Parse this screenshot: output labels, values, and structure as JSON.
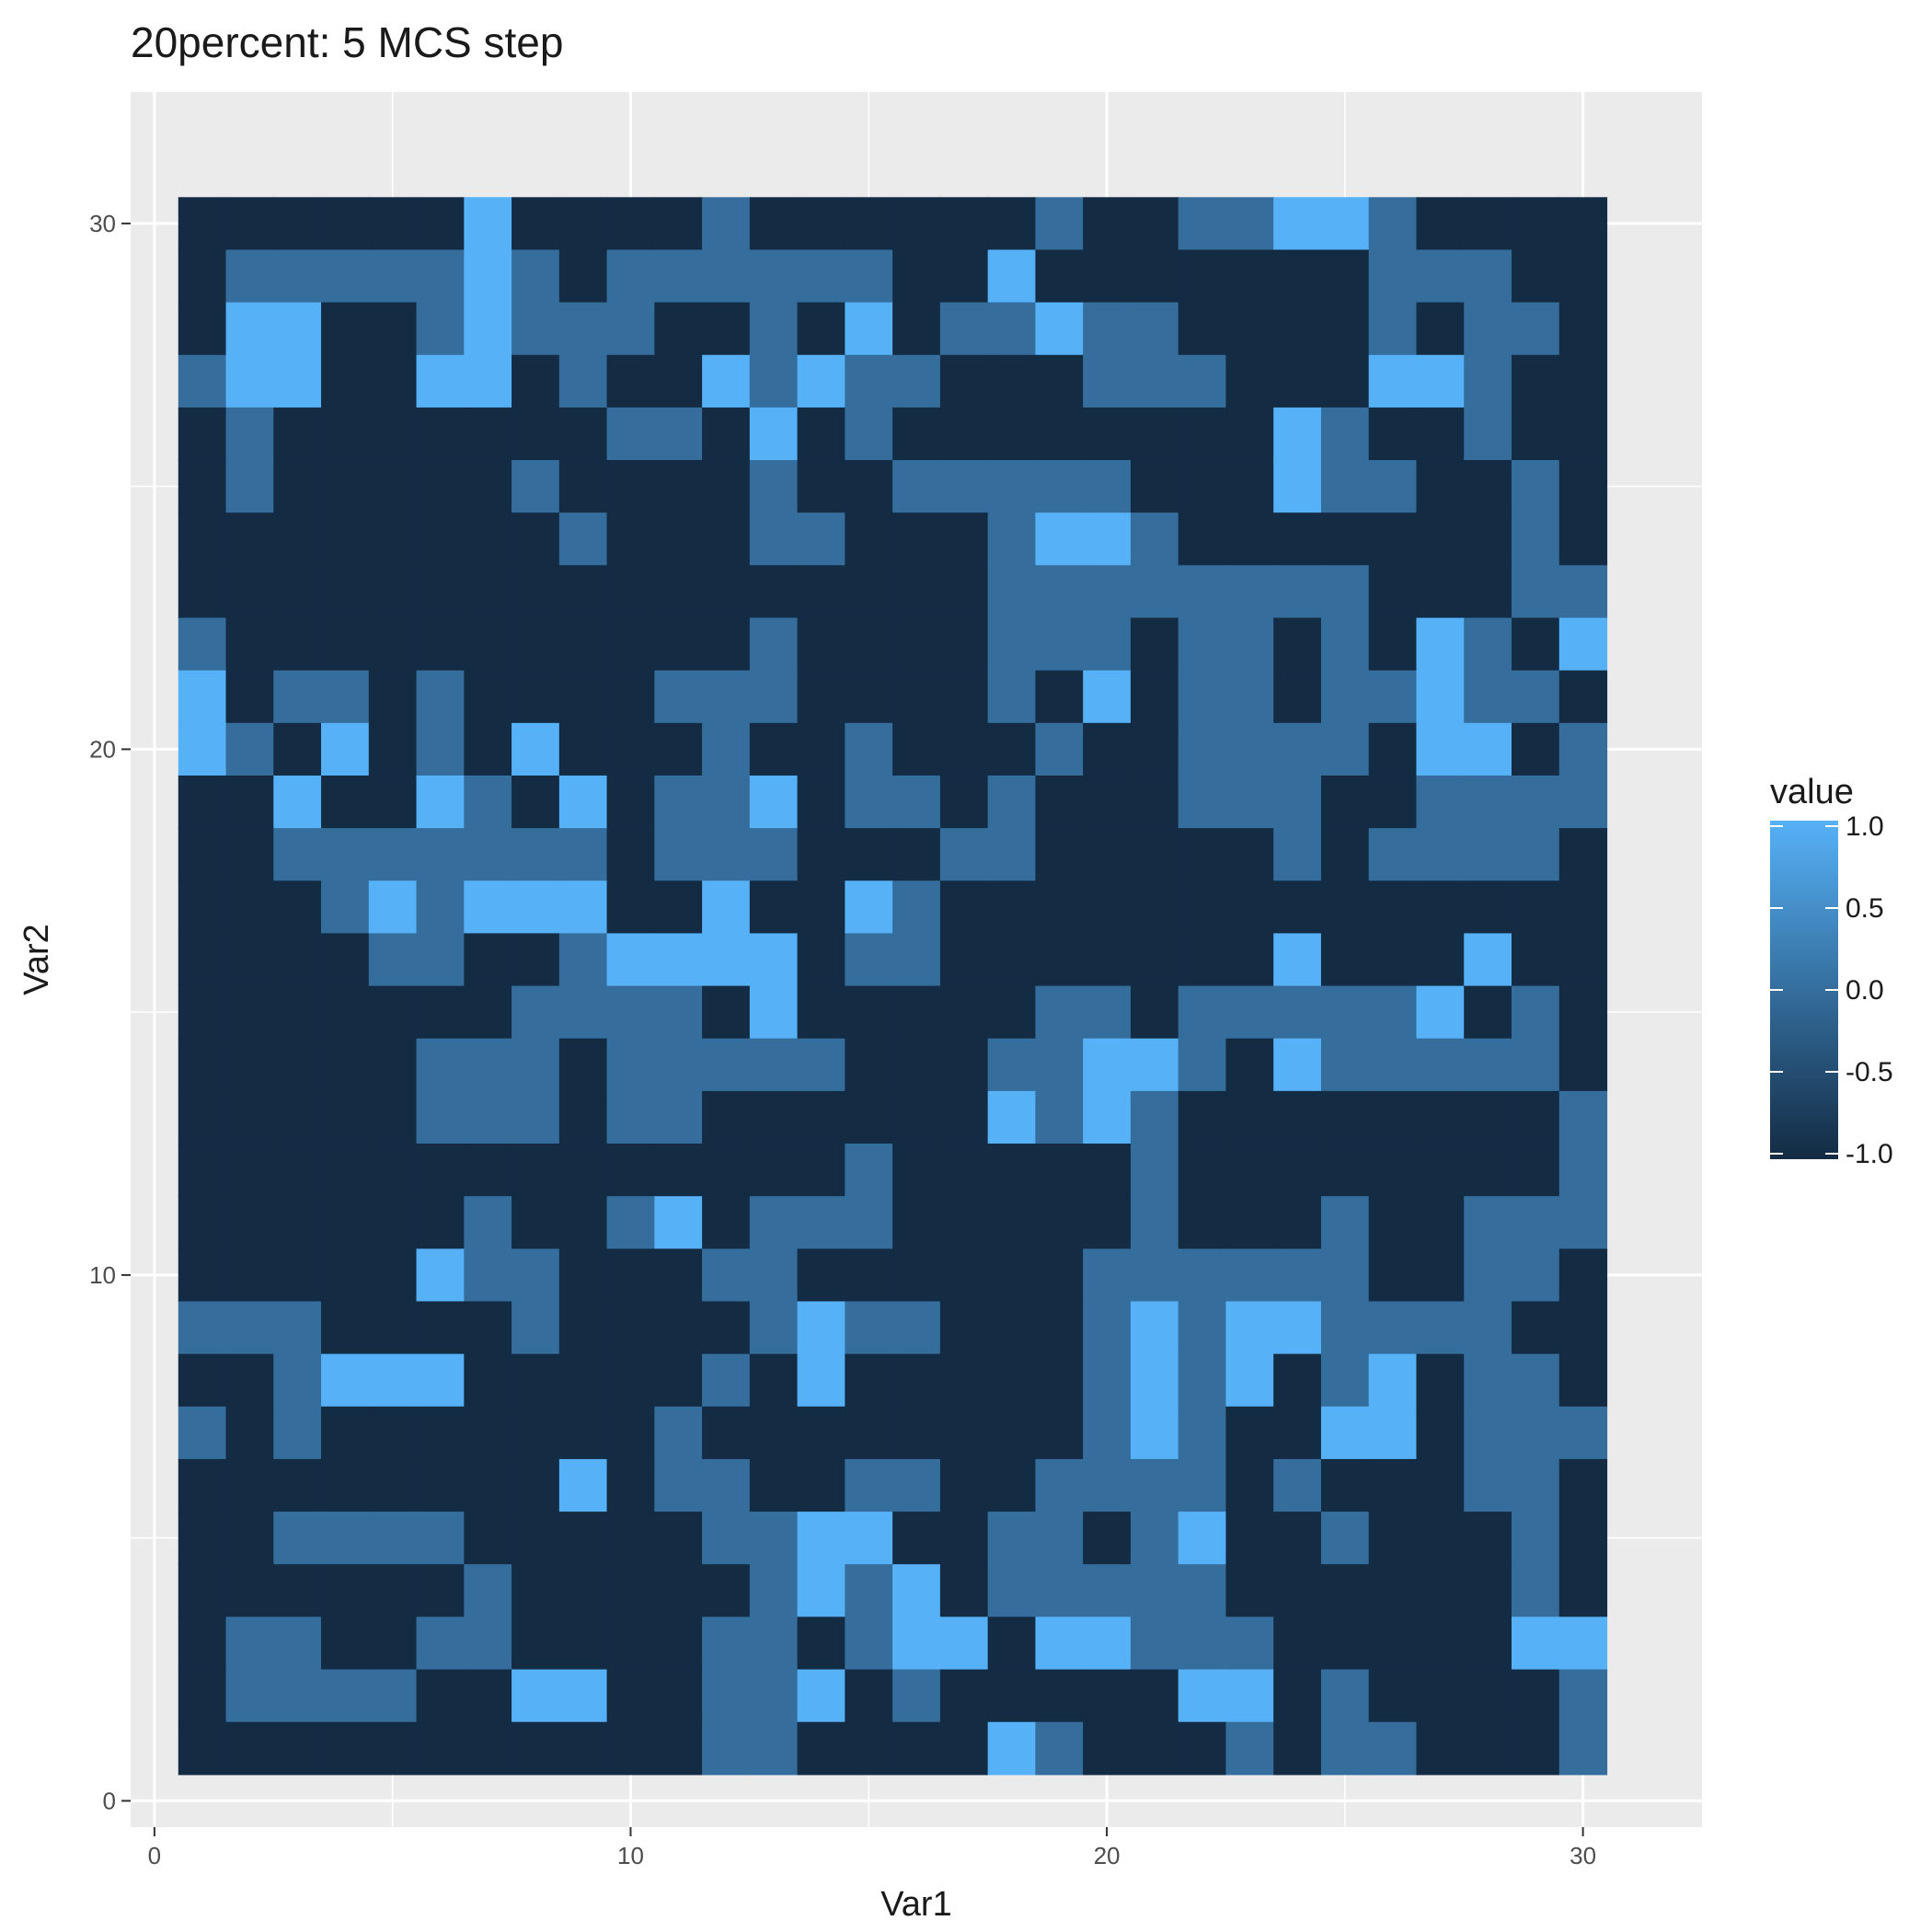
{
  "chart_data": {
    "type": "heatmap",
    "title": "20percent: 5 MCS step",
    "xlabel": "Var1",
    "ylabel": "Var2",
    "xlim": [
      -0.5,
      32.5
    ],
    "ylim": [
      -0.5,
      32.5
    ],
    "x_ticks": [
      0,
      10,
      20,
      30
    ],
    "y_ticks": [
      0,
      10,
      20,
      30
    ],
    "grid": true,
    "legend": {
      "title": "value",
      "position": "right",
      "ticks": [
        1.0,
        0.5,
        0.0,
        -0.5,
        -1.0
      ],
      "tick_labels": [
        "1.0",
        "0.5",
        "0.0",
        "-0.5",
        "-1.0"
      ],
      "low_color": "#132B43",
      "high_color": "#56B1F7"
    },
    "x": [
      1,
      2,
      3,
      4,
      5,
      6,
      7,
      8,
      9,
      10,
      11,
      12,
      13,
      14,
      15,
      16,
      17,
      18,
      19,
      20,
      21,
      22,
      23,
      24,
      25,
      26,
      27,
      28,
      29,
      30
    ],
    "y": [
      1,
      2,
      3,
      4,
      5,
      6,
      7,
      8,
      9,
      10,
      11,
      12,
      13,
      14,
      15,
      16,
      17,
      18,
      19,
      20,
      21,
      22,
      23,
      24,
      25,
      26,
      27,
      28,
      29,
      30
    ],
    "z_rows_top_to_bottom": [
      "DDDDDDLDDDDMDDDDDDMDDMMLLMDDDD",
      "DMMMMMLMDMMMMMMDDLDDDDDDDMMMDD",
      "DLLDDMLMMMDDMDLDMMLMMDDDDMDMMD",
      "MLLDDLLDMDDLMLMMDDDMMMDDDLLMDD",
      "DMDDDDDDDMMDLDMDDDDDDDDLMDDMDD",
      "DMDDDDDMDDDDMDDMMMMMDDDLMMDDMD",
      "DDDDDDDDMDDDMMDDDMLLMDDDDDDDMD",
      "DDDDDDDDDDDDDDDDDMMMMMMMMDDDMM",
      "MDDDDDDDDDDDMDDDDMMMDMMDMDLMDL",
      "LDMMDMDDDDMMMDDDDMDLDMMDMMLMMD",
      "LMDLDMDLDDDMDDMDDDMDDMMMMDLLDM",
      "DDLDDLMDLDMMLDMMDMDDDMMMDDMMMM",
      "DDMMMMMMMDMMMDDDMMDDDDDMDMMMMD",
      "DDDMLMLLLDDLDDLMDDDDDDDDDDDDDD",
      "DDDDMMDDMLLLLDMMDDDDDDDLDDDLDD",
      "DDDDDDDMMMMDLDDDDDMMDMMMMMLDMD",
      "DDDDDMMMDMMMMMDDDMMLLMDLMMMMMD",
      "DDDDDMMMDMMDDDDDDLMLMDDDDDDDDM",
      "DDDDDDDDDDDDDDMDDDDDMDDDDDDDDM",
      "DDDDDDMDDMLDMMMDDDDDMDDDMDDMMM",
      "DDDDDLMMDDDMMDDDDDDMMMMMMDDMMD",
      "MMMDDDDMDDDDMLMMDDDMLMLLMMMMDD",
      "DDMLLLDDDDDMDLDDDDDMLMLDMLDMMD",
      "MDMDDDDDDDMDDDDDDDDMLMDDLLDMMM",
      "DDDDDDDDLDMMDDMMDDMMMMDMDDDMMD",
      "DDMMMMDDDDDMMLLDDMMDMLDDMDDDMD",
      "DDDDDDMDDDDDMLMLDMMMMMDDDDDDMD",
      "DMMDDMMDDDDMMDMLLDLLMMMDDDDDLL",
      "DMMMMDDLLDDMMLDMDDDDDLLDMDDDDM",
      "DDDDDDDDDDDMMDDDDLMDDDMDMMDDDM"
    ],
    "z_codes": {
      "D": -1,
      "M": 0,
      "L": 1
    }
  }
}
